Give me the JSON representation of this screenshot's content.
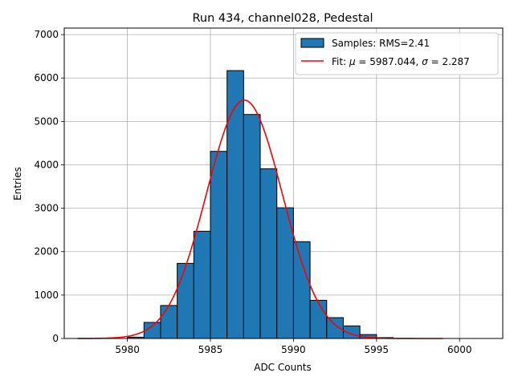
{
  "chart_data": {
    "type": "bar",
    "title": "Run 434, channel028, Pedestal",
    "xlabel": "ADC Counts",
    "ylabel": "Entries",
    "xlim": [
      5976.2,
      6002.6
    ],
    "ylim": [
      0,
      7150
    ],
    "xticks": [
      5980,
      5985,
      5990,
      5995,
      6000
    ],
    "yticks": [
      0,
      1000,
      2000,
      3000,
      4000,
      5000,
      6000,
      7000
    ],
    "grid": true,
    "legend_position": "top-right",
    "bin_width": 1,
    "bin_left_edges": [
      5980,
      5981,
      5982,
      5983,
      5984,
      5985,
      5986,
      5987,
      5988,
      5989,
      5990,
      5991,
      5992,
      5993,
      5994,
      5995
    ],
    "series": [
      {
        "name": "Samples: RMS=2.41",
        "kind": "histogram",
        "color": "#1f77b4",
        "edgecolor": "#000000",
        "values": [
          30,
          370,
          760,
          1730,
          2470,
          4310,
          6170,
          5160,
          3910,
          3010,
          2230,
          880,
          480,
          290,
          90,
          20
        ]
      },
      {
        "name": "Fit: μ = 5987.044, σ = 2.287",
        "kind": "gaussian-fit",
        "color": "#ff0000",
        "mu": 5987.044,
        "sigma": 2.287,
        "amplitude": 5490,
        "x_range": [
          5977,
          5999
        ]
      }
    ]
  }
}
